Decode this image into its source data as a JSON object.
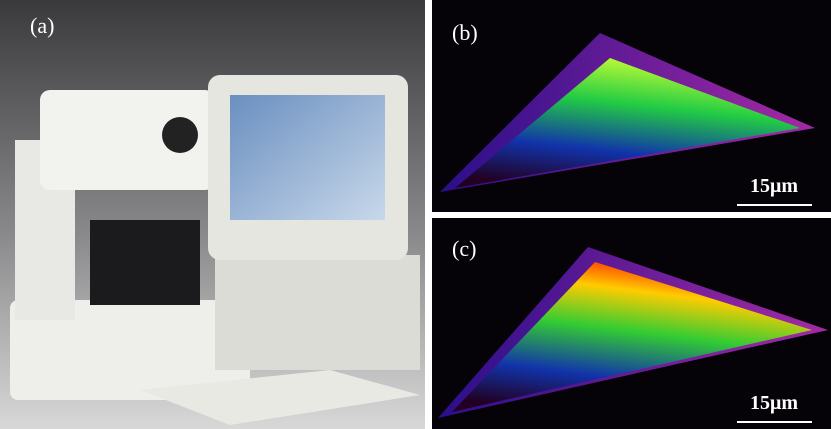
{
  "panels": [
    {
      "label": "(a)"
    },
    {
      "label": "(b)",
      "scale_bar": "15μm"
    },
    {
      "label": "(c)",
      "scale_bar": "15μm"
    }
  ]
}
